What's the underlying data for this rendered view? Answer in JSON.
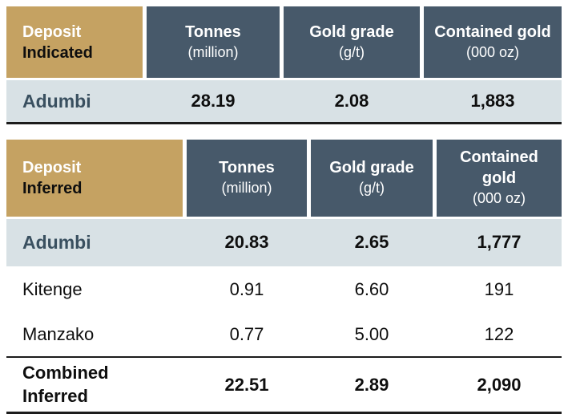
{
  "colors": {
    "deposit_header_bg": "#c5a262",
    "column_header_bg": "#47596a",
    "highlight_row_bg": "#d8e1e5",
    "highlight_name_text": "#3a5060",
    "rule_line": "#1c1c1c"
  },
  "tables": {
    "indicated": {
      "deposit_header": {
        "line1": "Deposit",
        "line2": "Indicated"
      },
      "columns": [
        {
          "label": "Tonnes",
          "unit": "(million)"
        },
        {
          "label": "Gold grade",
          "unit": "(g/t)"
        },
        {
          "label": "Contained gold",
          "unit": "(000 oz)"
        }
      ],
      "rows": [
        {
          "name": "Adumbi",
          "tonnes": "28.19",
          "grade": "2.08",
          "gold": "1,883"
        }
      ]
    },
    "inferred": {
      "deposit_header": {
        "line1": "Deposit",
        "line2": "Inferred"
      },
      "columns": [
        {
          "label": "Tonnes",
          "unit": "(million)"
        },
        {
          "label": "Gold grade",
          "unit": "(g/t)"
        },
        {
          "label": "Contained gold",
          "unit": "(000 oz)"
        }
      ],
      "rows": [
        {
          "name": "Adumbi",
          "tonnes": "20.83",
          "grade": "2.65",
          "gold": "1,777"
        },
        {
          "name": "Kitenge",
          "tonnes": "0.91",
          "grade": "6.60",
          "gold": "191"
        },
        {
          "name": "Manzako",
          "tonnes": "0.77",
          "grade": "5.00",
          "gold": "122"
        },
        {
          "name": "Combined Inferred",
          "tonnes": "22.51",
          "grade": "2.89",
          "gold": "2,090"
        }
      ]
    }
  }
}
